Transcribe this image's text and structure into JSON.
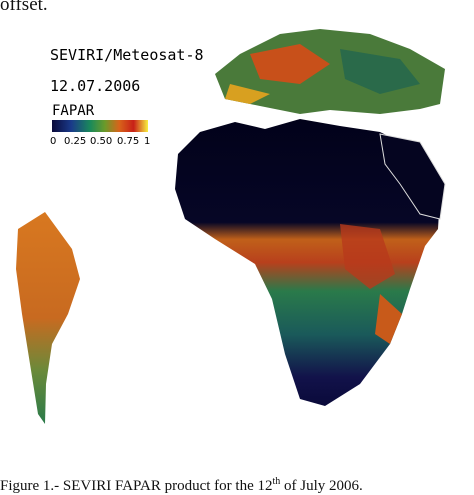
{
  "header": {
    "text": "offset."
  },
  "figure": {
    "satellite": "SEVIRI/Meteosat-8",
    "date": "12.07.2006",
    "colorbar": {
      "label": "FAPAR",
      "ticks": [
        "0",
        "0.25",
        "0.50",
        "0.75",
        "1"
      ]
    }
  },
  "caption": {
    "before": "Figure 1.- SEVIRI FAPAR product for the 12",
    "sup": "th",
    "after": "of July 2006."
  }
}
